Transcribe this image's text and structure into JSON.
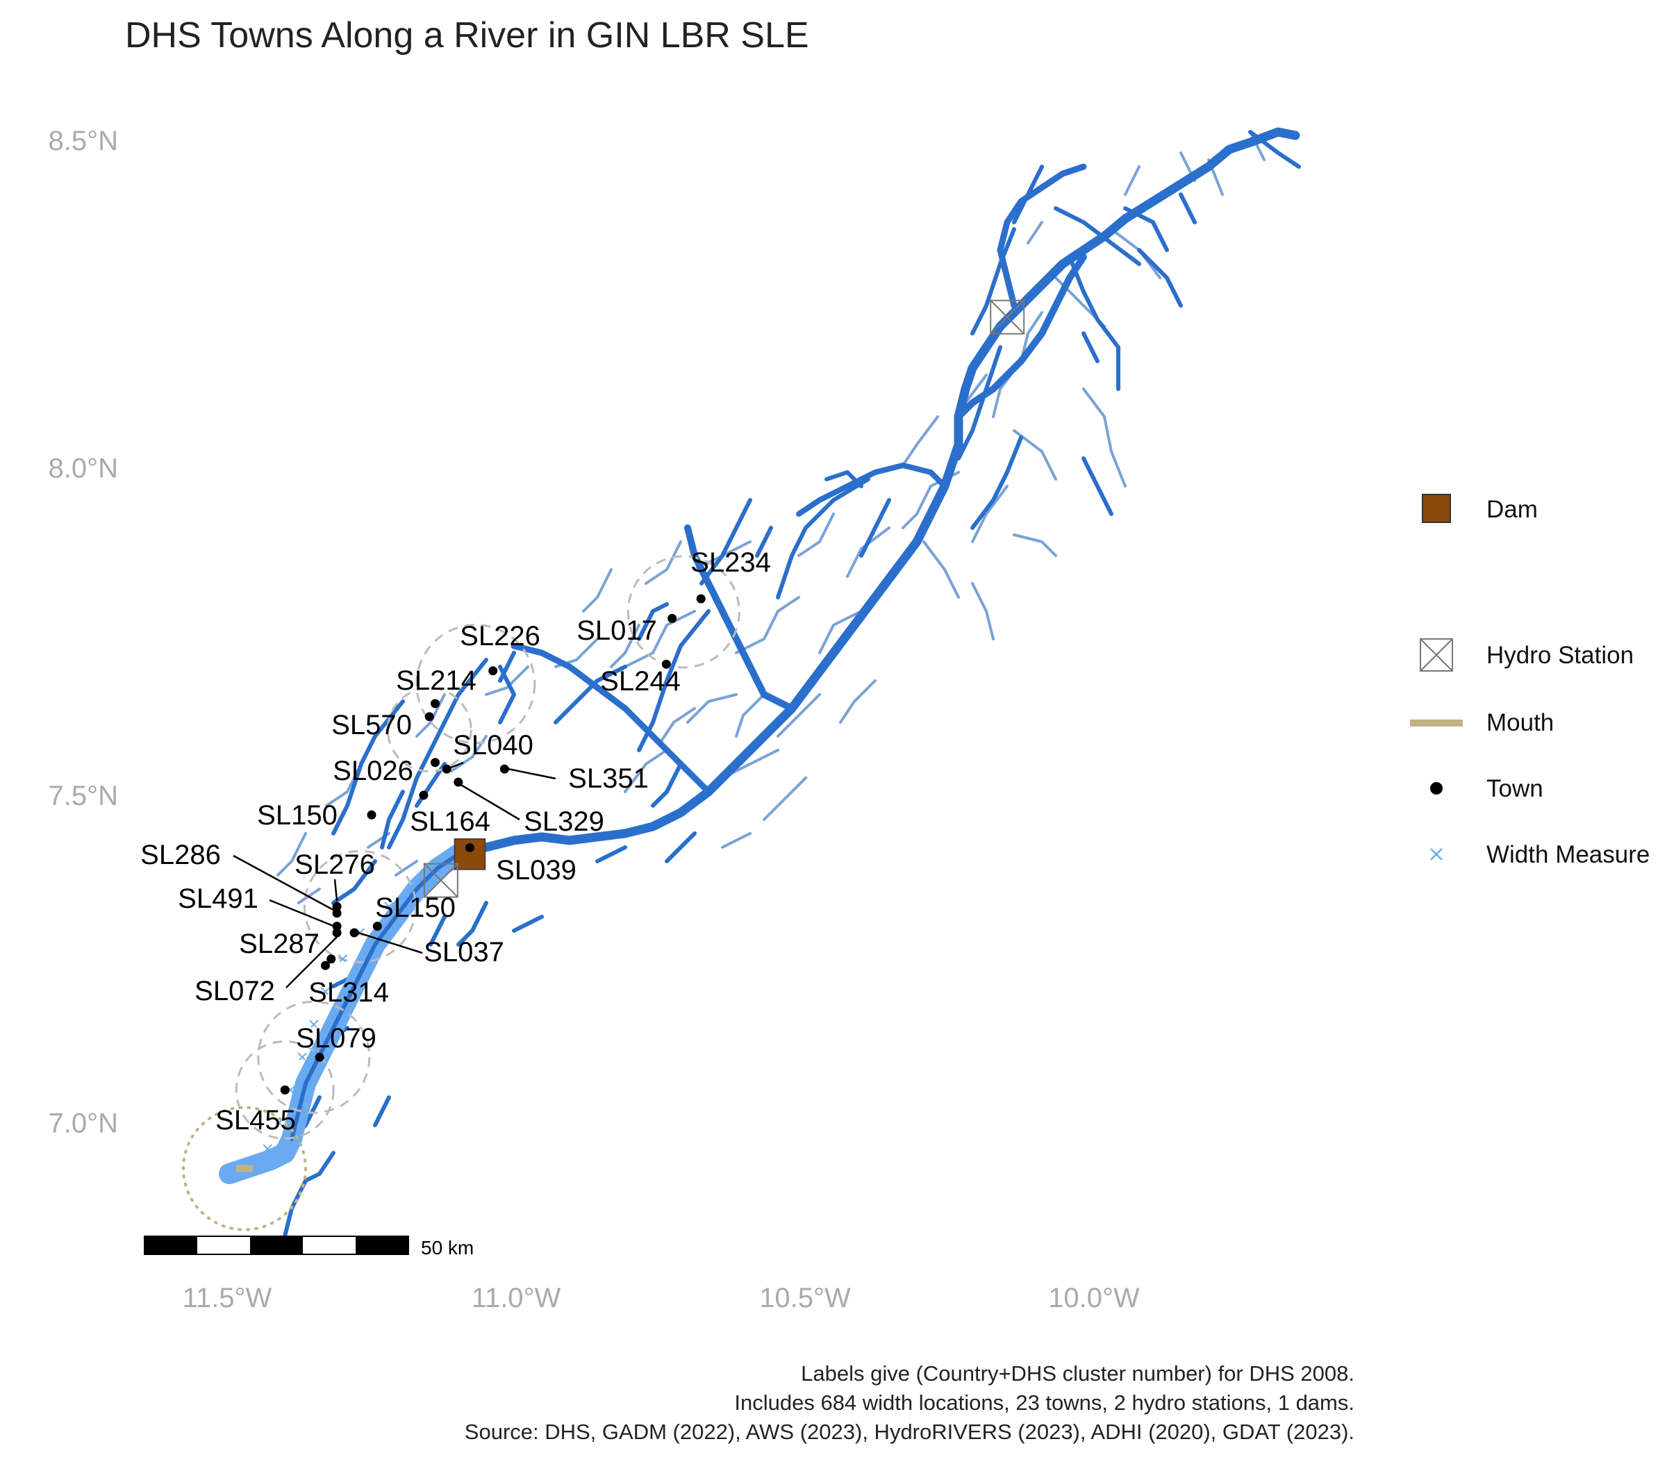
{
  "title": "DHS Towns Along a River in GIN LBR SLE",
  "axes": {
    "y_ticks": [
      {
        "value": 8.5,
        "label": "8.5°N"
      },
      {
        "value": 8.0,
        "label": "8.0°N"
      },
      {
        "value": 7.5,
        "label": "7.5°N"
      },
      {
        "value": 7.0,
        "label": "7.0°N"
      }
    ],
    "x_ticks": [
      {
        "value": -11.5,
        "label": "11.5°W"
      },
      {
        "value": -11.0,
        "label": "11.0°W"
      },
      {
        "value": -10.5,
        "label": "10.5°W"
      },
      {
        "value": -10.0,
        "label": "10.0°W"
      }
    ]
  },
  "legend": [
    {
      "key": "dam",
      "label": "Dam"
    },
    {
      "key": "hydro",
      "label": "Hydro Station"
    },
    {
      "key": "mouth",
      "label": "Mouth"
    },
    {
      "key": "town",
      "label": "Town"
    },
    {
      "key": "width",
      "label": "Width Measure"
    }
  ],
  "scale_bar": {
    "label": "50 km"
  },
  "caption": [
    "Labels give (Country+DHS cluster number) for DHS 2008.",
    "Includes 684 width locations, 23 towns, 2 hydro stations, 1 dams.",
    "Source: DHS, GADM (2022), AWS (2023), HydroRIVERS (2023), ADHI (2020), GDAT (2023)."
  ],
  "colors": {
    "river_main": "#2b6fcc",
    "river_light": "#7aa2d6",
    "width_measure": "#6aaaf0",
    "dam": "#8b4a0c",
    "mouth": "#c2b280",
    "hydro": "#777777",
    "town": "#000000",
    "axis_text": "#aaaaaa",
    "buffer": "#bbbbbb"
  },
  "chart_data": {
    "type": "map",
    "xlim": [
      -11.65,
      -9.65
    ],
    "ylim": [
      6.85,
      8.55
    ],
    "towns": [
      {
        "id": "SL234",
        "lon": -10.68,
        "lat": 7.8
      },
      {
        "id": "SL017",
        "lon": -10.73,
        "lat": 7.77
      },
      {
        "id": "SL244",
        "lon": -10.74,
        "lat": 7.7
      },
      {
        "id": "SL226",
        "lon": -11.04,
        "lat": 7.69
      },
      {
        "id": "SL214",
        "lon": -11.14,
        "lat": 7.64
      },
      {
        "id": "SL570",
        "lon": -11.15,
        "lat": 7.62
      },
      {
        "id": "SL040",
        "lon": -11.12,
        "lat": 7.54
      },
      {
        "id": "SL026",
        "lon": -11.14,
        "lat": 7.55
      },
      {
        "id": "SL351",
        "lon": -11.02,
        "lat": 7.54
      },
      {
        "id": "SL164",
        "lon": -11.16,
        "lat": 7.5
      },
      {
        "id": "SL329",
        "lon": -11.1,
        "lat": 7.52
      },
      {
        "id": "SL150",
        "lon": -11.25,
        "lat": 7.47
      },
      {
        "id": "SL039",
        "lon": -11.08,
        "lat": 7.42
      },
      {
        "id": "SL276",
        "lon": -11.31,
        "lat": 7.33
      },
      {
        "id": "SL286",
        "lon": -11.31,
        "lat": 7.32
      },
      {
        "id": "SL491",
        "lon": -11.31,
        "lat": 7.3
      },
      {
        "id": "SL150",
        "lon": -11.24,
        "lat": 7.3
      },
      {
        "id": "SL037",
        "lon": -11.28,
        "lat": 7.29
      },
      {
        "id": "SL287",
        "lon": -11.32,
        "lat": 7.25
      },
      {
        "id": "SL072",
        "lon": -11.31,
        "lat": 7.29
      },
      {
        "id": "SL314",
        "lon": -11.33,
        "lat": 7.24
      },
      {
        "id": "SL079",
        "lon": -11.34,
        "lat": 7.1
      },
      {
        "id": "SL455",
        "lon": -11.4,
        "lat": 7.05
      }
    ],
    "dams": [
      {
        "lon": -11.08,
        "lat": 7.41
      }
    ],
    "hydro_stations": [
      {
        "lon": -10.15,
        "lat": 8.23
      },
      {
        "lon": -11.13,
        "lat": 7.37
      }
    ],
    "mouth": {
      "lon": -11.47,
      "lat": 6.93
    }
  }
}
